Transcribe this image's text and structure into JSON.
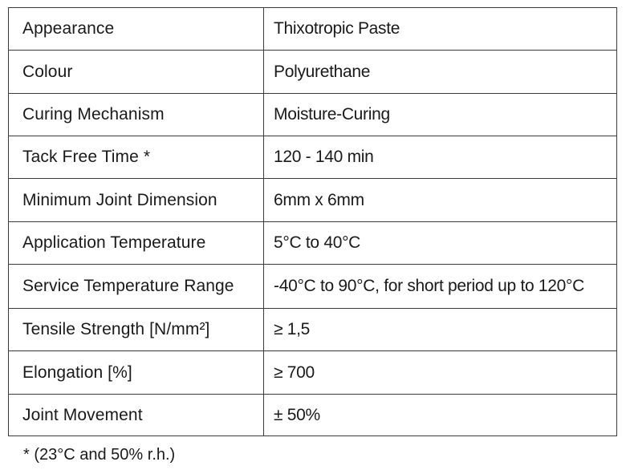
{
  "table": {
    "rows": [
      {
        "property": "Appearance",
        "value": "Thixotropic Paste"
      },
      {
        "property": "Colour",
        "value": "Polyurethane"
      },
      {
        "property": "Curing Mechanism",
        "value": "Moisture-Curing"
      },
      {
        "property": "Tack Free Time *",
        "value": "120 - 140 min"
      },
      {
        "property": "Minimum Joint Dimension",
        "value": "6mm x 6mm"
      },
      {
        "property": "Application Temperature",
        "value": "5°C to 40°C"
      },
      {
        "property": "Service Temperature Range",
        "value": "-40°C to 90°C, for short period up to 120°C"
      },
      {
        "property": "Tensile Strength [N/mm²]",
        "value": "≥ 1,5"
      },
      {
        "property": "Elongation [%]",
        "value": "≥ 700"
      },
      {
        "property": "Joint Movement",
        "value": "± 50%"
      }
    ]
  },
  "footnote": "* (23°C and 50% r.h.)"
}
